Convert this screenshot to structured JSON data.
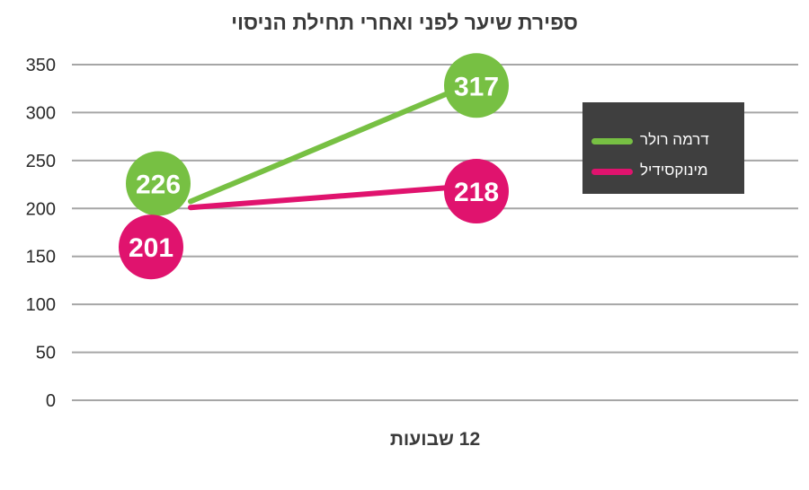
{
  "chart_data": {
    "type": "line",
    "title": "ספירת שיער לפני ואחרי תחילת הניסוי",
    "xlabel": "12 שבועות",
    "ylabel": "",
    "ylim": [
      0,
      350
    ],
    "yticks": [
      0,
      50,
      100,
      150,
      200,
      250,
      300,
      350
    ],
    "grid": true,
    "legend_position": "top-right",
    "series": [
      {
        "name": "דרמה רולר",
        "color": "#77c043",
        "values": [
          226,
          317
        ]
      },
      {
        "name": "מינוקסידיל",
        "color": "#e0136e",
        "values": [
          201,
          218
        ]
      }
    ]
  }
}
